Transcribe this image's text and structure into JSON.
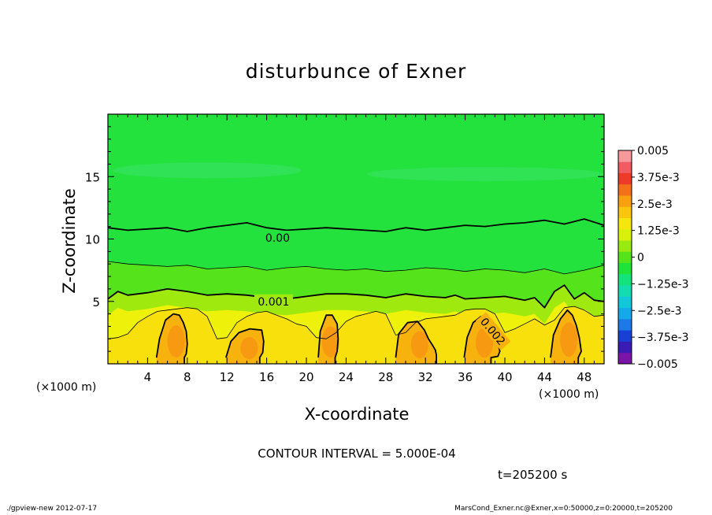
{
  "chart_data": {
    "type": "contour",
    "title": "disturbunce of Exner",
    "xlabel": "X-coordinate",
    "ylabel": "Z-coordinate",
    "x_unit": "(×1000 m)",
    "xlim": [
      0,
      50
    ],
    "ylim": [
      0,
      20
    ],
    "x_ticks": [
      4,
      8,
      12,
      16,
      20,
      24,
      28,
      32,
      36,
      40,
      44,
      48
    ],
    "y_ticks": [
      5,
      10,
      15
    ],
    "contour_interval_text": "CONTOUR INTERVAL = 5.000E-04",
    "time_text": "t=205200 s",
    "contour_labels": [
      {
        "text": "0.00",
        "x": 17.1,
        "z": 10.1,
        "rotate": 0
      },
      {
        "text": "0.001",
        "x": 16.7,
        "z": 5.0,
        "rotate": 0
      },
      {
        "text": "0.002",
        "x": 38.8,
        "z": 2.6,
        "rotate": 50
      }
    ],
    "contour_lines": [
      {
        "level": 0,
        "major": true,
        "x": [
          0,
          2,
          4,
          6,
          8,
          10,
          12,
          14,
          16,
          18,
          20,
          22,
          24,
          26,
          28,
          30,
          32,
          34,
          36,
          38,
          40,
          42,
          44,
          46,
          48,
          50
        ],
        "z": [
          10.9,
          10.7,
          10.8,
          10.9,
          10.6,
          10.9,
          11.1,
          11.3,
          10.9,
          10.7,
          10.8,
          10.9,
          10.8,
          10.7,
          10.6,
          10.9,
          10.7,
          10.9,
          11.1,
          11.0,
          11.2,
          11.3,
          11.5,
          11.2,
          11.6,
          11.1
        ]
      },
      {
        "level": 0.0005,
        "major": false,
        "x": [
          0,
          2,
          4,
          6,
          8,
          10,
          12,
          14,
          16,
          18,
          20,
          22,
          24,
          26,
          28,
          30,
          32,
          34,
          36,
          38,
          40,
          42,
          44,
          46,
          48,
          50
        ],
        "z": [
          8.2,
          8.0,
          7.9,
          7.8,
          7.9,
          7.6,
          7.7,
          7.8,
          7.5,
          7.7,
          7.8,
          7.6,
          7.5,
          7.6,
          7.4,
          7.5,
          7.7,
          7.6,
          7.4,
          7.6,
          7.5,
          7.3,
          7.6,
          7.2,
          7.5,
          7.9
        ]
      },
      {
        "level": 0.001,
        "major": true,
        "x": [
          0,
          1,
          2,
          4,
          6,
          8,
          10,
          12,
          14,
          16,
          18,
          20,
          22,
          24,
          26,
          28,
          30,
          32,
          34,
          35,
          36,
          38,
          40,
          42,
          43,
          44,
          45,
          46,
          47,
          48,
          49,
          50
        ],
        "z": [
          5.2,
          5.8,
          5.5,
          5.7,
          6.0,
          5.8,
          5.5,
          5.6,
          5.5,
          5.3,
          5.2,
          5.4,
          5.6,
          5.6,
          5.5,
          5.3,
          5.6,
          5.4,
          5.3,
          5.5,
          5.2,
          5.3,
          5.4,
          5.1,
          5.3,
          4.5,
          5.8,
          6.3,
          5.2,
          5.7,
          5.1,
          5.0
        ]
      },
      {
        "level": 0.0015,
        "major": false,
        "x": [
          0,
          1,
          2,
          3,
          4,
          5,
          6,
          8,
          9,
          10,
          11,
          12,
          13,
          14,
          15,
          16,
          17,
          18,
          19,
          20,
          21,
          22,
          23,
          24,
          25,
          26,
          27,
          28,
          29,
          30,
          31,
          32,
          33,
          34,
          35,
          36,
          37,
          38,
          39,
          40,
          41,
          42,
          43,
          44,
          45,
          46,
          47,
          48,
          49,
          50
        ],
        "z": [
          2.0,
          2.1,
          2.4,
          3.3,
          3.8,
          4.2,
          4.3,
          4.5,
          4.4,
          3.8,
          2.0,
          2.1,
          3.3,
          3.8,
          4.1,
          4.2,
          3.9,
          3.6,
          3.2,
          3.0,
          2.1,
          2.0,
          2.5,
          3.4,
          3.8,
          4.0,
          4.2,
          4.0,
          2.3,
          2.5,
          3.3,
          3.6,
          3.7,
          3.8,
          3.9,
          4.3,
          4.4,
          4.4,
          4.0,
          2.5,
          2.8,
          3.2,
          3.6,
          3.1,
          3.5,
          4.5,
          4.6,
          4.3,
          3.8,
          3.9
        ]
      },
      {
        "level": 0.002,
        "major": true,
        "closed": true,
        "x": [
          4.9,
          5.2,
          5.8,
          6.6,
          7.2,
          7.6,
          7.9,
          8.0,
          7.9,
          7.7
        ],
        "z": [
          0.5,
          2.0,
          3.5,
          4.0,
          3.9,
          3.3,
          2.6,
          1.6,
          0.8,
          0.5
        ]
      },
      {
        "level": 0.002,
        "major": true,
        "closed": true,
        "x": [
          11.9,
          12.4,
          13.2,
          14.3,
          15.5,
          15.7,
          15.6,
          15.3
        ],
        "z": [
          0.5,
          1.8,
          2.5,
          2.8,
          2.7,
          1.8,
          0.9,
          0.5
        ]
      },
      {
        "level": 0.002,
        "major": true,
        "closed": true,
        "x": [
          21.2,
          21.4,
          22.0,
          22.6,
          23.1,
          23.2,
          23.1,
          22.9
        ],
        "z": [
          0.5,
          2.6,
          3.9,
          3.9,
          3.2,
          2.0,
          1.0,
          0.5
        ]
      },
      {
        "level": 0.002,
        "major": true,
        "closed": true,
        "x": [
          29.0,
          29.3,
          30.2,
          31.2,
          31.9,
          32.3,
          32.7,
          33.0,
          33.1
        ],
        "z": [
          0.5,
          2.4,
          3.3,
          3.4,
          2.7,
          2.0,
          1.5,
          1.1,
          0.7
        ]
      },
      {
        "level": 0.002,
        "major": true,
        "closed": true,
        "x": [
          35.9,
          36.2,
          36.8,
          37.6,
          38.4,
          39.2,
          39.5,
          39.3,
          38.6
        ],
        "z": [
          0.5,
          2.1,
          3.3,
          3.8,
          3.2,
          1.9,
          1.0,
          0.6,
          0.5
        ]
      },
      {
        "level": 0.002,
        "major": true,
        "closed": true,
        "x": [
          44.6,
          44.9,
          45.6,
          46.3,
          46.8,
          47.2,
          47.5,
          47.7,
          47.4
        ],
        "z": [
          0.5,
          2.3,
          3.6,
          4.3,
          3.9,
          3.1,
          2.1,
          1.0,
          0.5
        ]
      }
    ],
    "colorbar": {
      "range": [
        -0.005,
        0.005
      ],
      "labels": [
        "0.005",
        "3.75e-3",
        "2.5e-3",
        "1.25e-3",
        "0",
        "−1.25e-3",
        "−2.5e-3",
        "−3.75e-3",
        "−0.005"
      ],
      "colors": [
        "#7a15a8",
        "#3a1bb4",
        "#1a3fd4",
        "#1d78e8",
        "#15a9ec",
        "#11c8d8",
        "#12dcb0",
        "#14e37c",
        "#1fe23a",
        "#54e419",
        "#98ea10",
        "#d8f00a",
        "#f5e70e",
        "#f9c50d",
        "#f7a010",
        "#f2711a",
        "#ee3a28",
        "#f15b62",
        "#f6999b"
      ],
      "bands_interval": 0.000625
    }
  },
  "texts": {
    "footer_left": "./gpview-new   2012-07-17",
    "footer_right": "MarsCond_Exner.nc@Exner,x=0:50000,z=0:20000,t=205200"
  },
  "palette": {
    "green_bg": "#24e23d",
    "green_light": "#3ae46b",
    "green_mid": "#55e41c",
    "yellow_green": "#9fe90f",
    "yellow": "#eef20a",
    "yellow_orange": "#f8e00c",
    "orange": "#f8b20e",
    "deep_orange": "#f68f12"
  }
}
